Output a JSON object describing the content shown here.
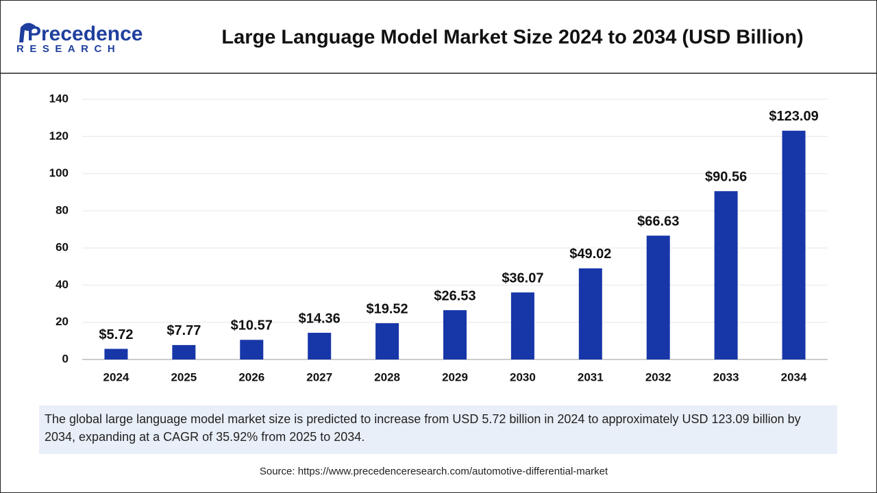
{
  "logo": {
    "name": "Precedence",
    "tagline": "RESEARCH"
  },
  "chart_data": {
    "type": "bar",
    "title": "Large Language Model Market Size 2024 to 2034 (USD Billion)",
    "categories": [
      "2024",
      "2025",
      "2026",
      "2027",
      "2028",
      "2029",
      "2030",
      "2031",
      "2032",
      "2033",
      "2034"
    ],
    "values": [
      5.72,
      7.77,
      10.57,
      14.36,
      19.52,
      26.53,
      36.07,
      49.02,
      66.63,
      90.56,
      123.09
    ],
    "value_labels": [
      "$5.72",
      "$7.77",
      "$10.57",
      "$14.36",
      "$19.52",
      "$26.53",
      "$36.07",
      "$49.02",
      "$66.63",
      "$90.56",
      "$123.09"
    ],
    "color": "#1736a8",
    "ylim": [
      0,
      140
    ],
    "yticks": [
      0,
      20,
      40,
      60,
      80,
      100,
      120,
      140
    ],
    "grid": true
  },
  "description": "The global large language model market size is predicted to increase from USD 5.72 billion in 2024 to approximately USD 123.09 billion by 2034, expanding at a CAGR of 35.92% from 2025 to 2034.",
  "source": "Source: https://www.precedenceresearch.com/automotive-differential-market"
}
